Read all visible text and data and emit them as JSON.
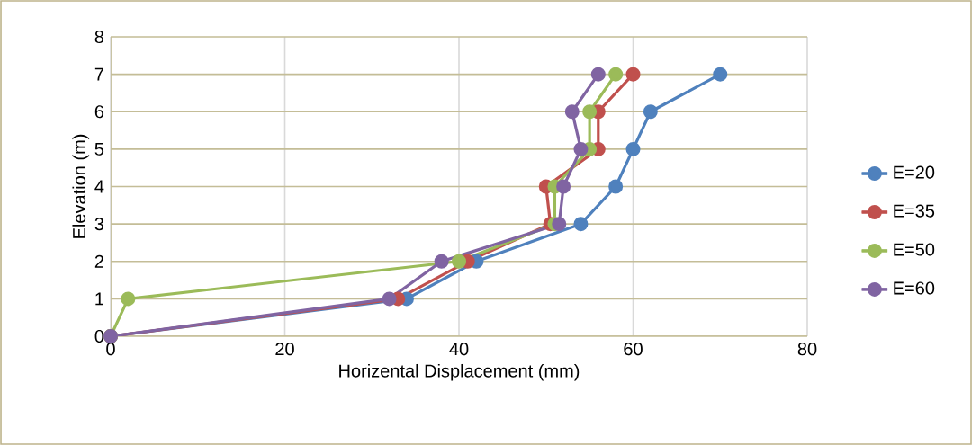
{
  "chart_data": {
    "type": "line",
    "xlabel": "Horizental Displacement (mm)",
    "ylabel": "Elevation (m)",
    "xlim": [
      0,
      80
    ],
    "xticks": [
      0,
      20,
      40,
      60,
      80
    ],
    "ylim": [
      0,
      8
    ],
    "yticks": [
      0,
      1,
      2,
      3,
      4,
      5,
      6,
      7,
      8
    ],
    "grid": true,
    "legend": "right",
    "marker": "circle",
    "series": [
      {
        "name": "E=20",
        "color": "#4f81bd",
        "x": [
          0,
          34,
          42,
          54,
          58,
          60,
          62,
          70
        ],
        "values": [
          0,
          1,
          2,
          3,
          4,
          5,
          6,
          7
        ]
      },
      {
        "name": "E=35",
        "color": "#c0504d",
        "x": [
          0,
          33,
          41,
          50.5,
          50,
          56,
          56,
          60
        ],
        "values": [
          0,
          1,
          2,
          3,
          4,
          5,
          6,
          7
        ]
      },
      {
        "name": "E=50",
        "color": "#9bbb59",
        "x": [
          0,
          2,
          40,
          51,
          51,
          55,
          55,
          58
        ],
        "values": [
          0,
          1,
          2,
          3,
          4,
          5,
          6,
          7
        ]
      },
      {
        "name": "E=60",
        "color": "#8064a2",
        "x": [
          0,
          32,
          38,
          51.5,
          52,
          54,
          53,
          56
        ],
        "values": [
          0,
          1,
          2,
          3,
          4,
          5,
          6,
          7
        ]
      }
    ]
  }
}
